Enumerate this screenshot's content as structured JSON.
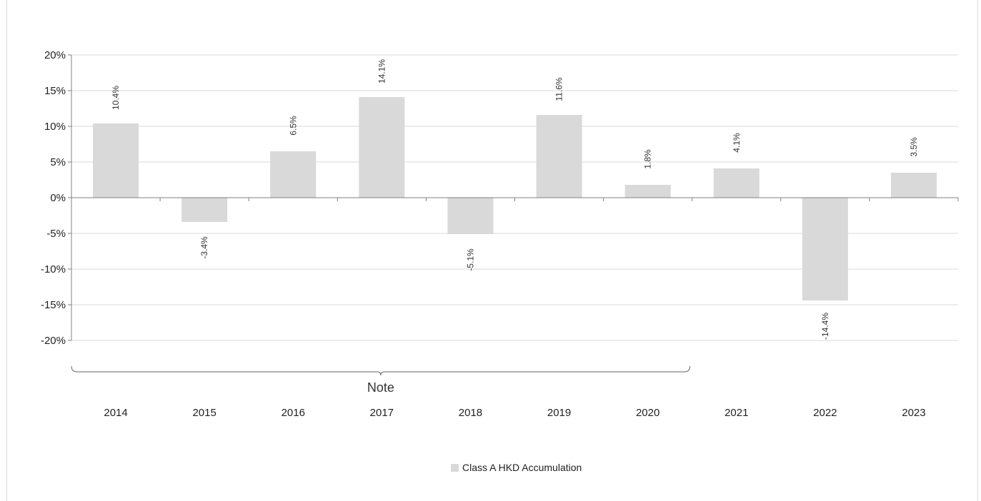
{
  "chart_data": {
    "type": "bar",
    "categories": [
      "2014",
      "2015",
      "2016",
      "2017",
      "2018",
      "2019",
      "2020",
      "2021",
      "2022",
      "2023"
    ],
    "series": [
      {
        "name": "Class A HKD Accumulation",
        "values": [
          10.4,
          -3.4,
          6.5,
          14.1,
          -5.1,
          11.6,
          1.8,
          4.1,
          -14.4,
          3.5
        ],
        "labels": [
          "10.4%",
          "-3.4%",
          "6.5%",
          "14.1%",
          "-5.1%",
          "11.6%",
          "1.8%",
          "4.1%",
          "-14.4%",
          "3.5%"
        ]
      }
    ],
    "y_ticks": [
      "20%",
      "15%",
      "10%",
      "5%",
      "0%",
      "-5%",
      "-10%",
      "-15%",
      "-20%"
    ],
    "ylim": [
      -20,
      20
    ],
    "grid": true,
    "legend_position": "bottom",
    "bar_color": "#d9d9d9",
    "annotation": {
      "text": "Note",
      "span_categories": [
        "2014",
        "2020"
      ]
    }
  }
}
